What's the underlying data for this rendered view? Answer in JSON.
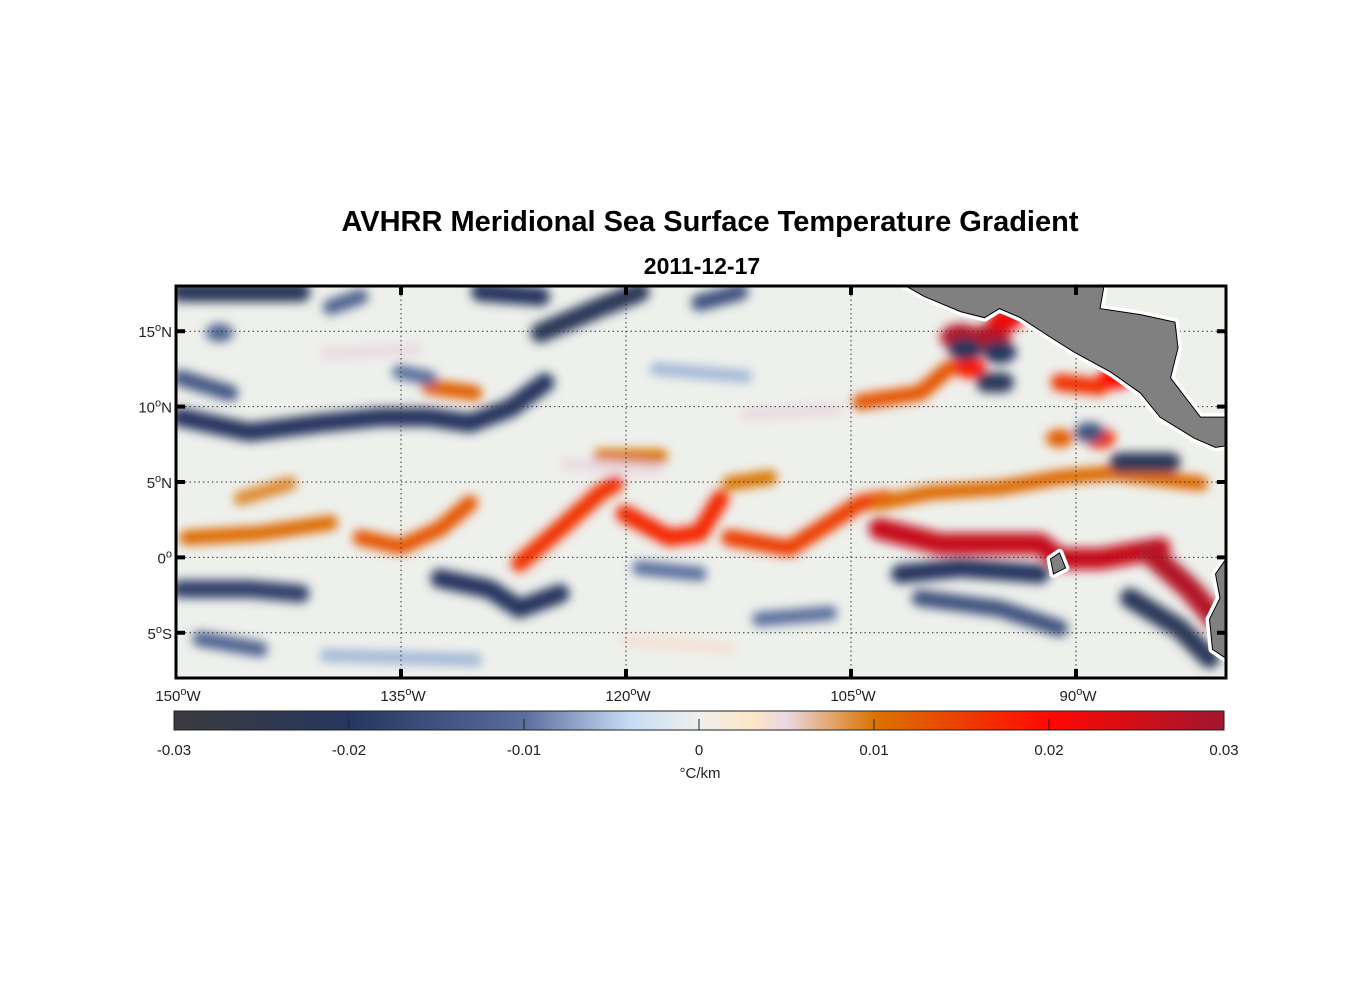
{
  "title": "AVHRR Meridional Sea Surface Temperature Gradient",
  "subtitle": "2011-12-17",
  "chart_data": {
    "type": "heatmap",
    "projection": "equirectangular",
    "lon_range": [
      -150,
      -80
    ],
    "lat_range": [
      -8,
      18
    ],
    "grid": true,
    "x_ticks": [
      {
        "lon": -150,
        "deg": "150",
        "hem": "W"
      },
      {
        "lon": -135,
        "deg": "135",
        "hem": "W"
      },
      {
        "lon": -120,
        "deg": "120",
        "hem": "W"
      },
      {
        "lon": -105,
        "deg": "105",
        "hem": "W"
      },
      {
        "lon": -90,
        "deg": "90",
        "hem": "W"
      }
    ],
    "y_ticks": [
      {
        "lat": 15,
        "deg": "15",
        "hem": "N"
      },
      {
        "lat": 10,
        "deg": "10",
        "hem": "N"
      },
      {
        "lat": 5,
        "deg": "5",
        "hem": "N"
      },
      {
        "lat": 0,
        "deg": "0",
        "hem": ""
      },
      {
        "lat": -5,
        "deg": "5",
        "hem": "S"
      }
    ],
    "colorbar": {
      "range": [
        -0.03,
        0.03
      ],
      "ticks": [
        "-0.03",
        "-0.02",
        "-0.01",
        "0",
        "0.01",
        "0.02",
        "0.03"
      ],
      "tick_values": [
        -0.03,
        -0.02,
        -0.01,
        0,
        0.01,
        0.02,
        0.03
      ],
      "label": "°C/km",
      "stops": [
        [
          -0.03,
          "#3b3b3d"
        ],
        [
          -0.02,
          "#25365f"
        ],
        [
          -0.01,
          "#5a6e9c"
        ],
        [
          -0.004,
          "#c6dbf4"
        ],
        [
          0,
          "#eef0ec"
        ],
        [
          0.003,
          "#fde7c6"
        ],
        [
          0.005,
          "#ead9e1"
        ],
        [
          0.01,
          "#da7400"
        ],
        [
          0.02,
          "#ff0800"
        ],
        [
          0.03,
          "#a0162f"
        ]
      ]
    },
    "background_value": 0,
    "features": [
      {
        "value": 0.011,
        "pts": [
          [
            -149.3,
            1.3
          ],
          [
            -144.4,
            1.6
          ],
          [
            -139.7,
            2.3
          ]
        ]
      },
      {
        "value": 0.009,
        "pts": [
          [
            -145.7,
            3.9
          ],
          [
            -142.4,
            4.9
          ]
        ]
      },
      {
        "value": 0.013,
        "pts": [
          [
            -137.7,
            1.3
          ],
          [
            -135,
            0.7
          ],
          [
            -132.4,
            1.9
          ],
          [
            -130.4,
            3.6
          ]
        ]
      },
      {
        "value": 0.016,
        "pts": [
          [
            -127.1,
            -0.4
          ],
          [
            -124.4,
            1.9
          ],
          [
            -121.7,
            4.3
          ],
          [
            -120.7,
            4.9
          ]
        ]
      },
      {
        "value": 0.017,
        "pts": [
          [
            -120.1,
            2.9
          ],
          [
            -117.1,
            1.3
          ],
          [
            -115.1,
            1.6
          ],
          [
            -113.7,
            3.9
          ]
        ]
      },
      {
        "value": 0.015,
        "pts": [
          [
            -113.1,
            1.3
          ],
          [
            -109.1,
            0.6
          ],
          [
            -106.4,
            2.3
          ],
          [
            -104.4,
            3.6
          ],
          [
            -102.7,
            3.9
          ]
        ]
      },
      {
        "value": 0.011,
        "pts": [
          [
            -103.1,
            3.6
          ],
          [
            -99.7,
            4.3
          ],
          [
            -95.1,
            4.6
          ],
          [
            -91.1,
            5.3
          ],
          [
            -87.7,
            5.6
          ],
          [
            -81.7,
            4.9
          ]
        ]
      },
      {
        "value": 0.026,
        "pts": [
          [
            -103.1,
            1.9
          ],
          [
            -99.1,
            0.9
          ],
          [
            -95.1,
            0.9
          ],
          [
            -92.4,
            0.9
          ],
          [
            -91.1,
            -0.1
          ],
          [
            -88.4,
            -0.1
          ],
          [
            -84.4,
            0.6
          ]
        ]
      },
      {
        "value": 0.028,
        "pts": [
          [
            -85.1,
            0.3
          ],
          [
            -82.4,
            -2.1
          ],
          [
            -80.7,
            -4.1
          ]
        ]
      },
      {
        "value": 0.01,
        "pts": [
          [
            -121.7,
            6.7
          ],
          [
            -117.7,
            6.7
          ]
        ]
      },
      {
        "value": 0.012,
        "pts": [
          [
            -133.1,
            11.3
          ],
          [
            -130.1,
            10.9
          ]
        ]
      },
      {
        "value": 0.01,
        "pts": [
          [
            -113.1,
            4.9
          ],
          [
            -110.4,
            5.3
          ]
        ]
      },
      {
        "value": 0.013,
        "pts": [
          [
            -104.4,
            10.3
          ],
          [
            -100.4,
            10.9
          ],
          [
            -98.4,
            12.6
          ]
        ]
      },
      {
        "value": 0.028,
        "pts": [
          [
            -97.7,
            14.6
          ]
        ]
      },
      {
        "value": 0.028,
        "pts": [
          [
            -95.7,
            14.6
          ]
        ]
      },
      {
        "value": 0.022,
        "pts": [
          [
            -94.7,
            15.8
          ]
        ]
      },
      {
        "value": 0.018,
        "pts": [
          [
            -97.1,
            12.6
          ]
        ]
      },
      {
        "value": -0.02,
        "pts": [
          [
            -97.4,
            13.8
          ]
        ]
      },
      {
        "value": -0.02,
        "pts": [
          [
            -95.1,
            13.6
          ]
        ]
      },
      {
        "value": -0.022,
        "pts": [
          [
            -96.0,
            11.6
          ],
          [
            -94.8,
            11.6
          ]
        ]
      },
      {
        "value": 0.016,
        "pts": [
          [
            -91.1,
            11.6
          ],
          [
            -88.4,
            11.3
          ]
        ]
      },
      {
        "value": 0.02,
        "pts": [
          [
            -87.4,
            11.9
          ]
        ]
      },
      {
        "value": 0.016,
        "pts": [
          [
            -88.4,
            7.9
          ]
        ]
      },
      {
        "value": 0.012,
        "pts": [
          [
            -91.1,
            7.9
          ]
        ]
      },
      {
        "value": -0.015,
        "pts": [
          [
            -89.1,
            8.3
          ]
        ]
      },
      {
        "value": -0.022,
        "pts": [
          [
            -87.1,
            6.3
          ],
          [
            -83.7,
            6.3
          ]
        ]
      },
      {
        "value": -0.02,
        "pts": [
          [
            -149.7,
            9.3
          ],
          [
            -145.1,
            8.3
          ],
          [
            -140.4,
            8.9
          ],
          [
            -136.4,
            9.3
          ],
          [
            -133.1,
            9.3
          ],
          [
            -130.4,
            8.9
          ],
          [
            -127.7,
            9.9
          ],
          [
            -125.4,
            11.6
          ]
        ]
      },
      {
        "value": -0.022,
        "pts": [
          [
            -149.7,
            17.6
          ],
          [
            -141.7,
            17.6
          ]
        ]
      },
      {
        "value": -0.02,
        "pts": [
          [
            -129.7,
            17.6
          ],
          [
            -125.7,
            17.3
          ]
        ]
      },
      {
        "value": -0.022,
        "pts": [
          [
            -125.7,
            14.9
          ],
          [
            -121.7,
            16.6
          ],
          [
            -119.1,
            17.6
          ]
        ]
      },
      {
        "value": -0.015,
        "pts": [
          [
            -115.1,
            16.9
          ],
          [
            -112.4,
            17.6
          ]
        ]
      },
      {
        "value": -0.012,
        "pts": [
          [
            -139.7,
            16.6
          ],
          [
            -137.7,
            17.3
          ]
        ]
      },
      {
        "value": -0.012,
        "pts": [
          [
            -147.1,
            14.9
          ]
        ]
      },
      {
        "value": -0.01,
        "pts": [
          [
            -135.1,
            12.3
          ],
          [
            -133.1,
            11.9
          ]
        ]
      },
      {
        "value": -0.014,
        "pts": [
          [
            -149.7,
            11.9
          ],
          [
            -146.4,
            10.9
          ]
        ]
      },
      {
        "value": -0.018,
        "pts": [
          [
            -149.7,
            -2.1
          ],
          [
            -145.1,
            -2.1
          ],
          [
            -141.7,
            -2.4
          ]
        ]
      },
      {
        "value": -0.02,
        "pts": [
          [
            -132.4,
            -1.4
          ],
          [
            -129.1,
            -2.1
          ],
          [
            -127.1,
            -3.4
          ],
          [
            -124.4,
            -2.4
          ]
        ]
      },
      {
        "value": -0.02,
        "pts": [
          [
            -101.7,
            -1.1
          ],
          [
            -97.7,
            -0.7
          ],
          [
            -92.4,
            -1.1
          ]
        ]
      },
      {
        "value": -0.015,
        "pts": [
          [
            -100.4,
            -2.7
          ],
          [
            -95.1,
            -3.4
          ],
          [
            -91.1,
            -4.7
          ]
        ]
      },
      {
        "value": -0.022,
        "pts": [
          [
            -86.4,
            -2.7
          ],
          [
            -83.1,
            -4.7
          ],
          [
            -81.1,
            -6.7
          ]
        ]
      },
      {
        "value": -0.012,
        "pts": [
          [
            -148.4,
            -5.4
          ],
          [
            -144.4,
            -6.1
          ]
        ]
      },
      {
        "value": -0.01,
        "pts": [
          [
            -111.1,
            -4.1
          ],
          [
            -106.4,
            -3.7
          ]
        ]
      },
      {
        "value": -0.01,
        "pts": [
          [
            -119.1,
            -0.7
          ],
          [
            -115.1,
            -1.1
          ]
        ]
      },
      {
        "value": 0.005,
        "pts": [
          [
            -140,
            13.5
          ],
          [
            -134,
            13.8
          ]
        ]
      },
      {
        "value": 0.005,
        "pts": [
          [
            -124,
            6.2
          ],
          [
            -118,
            5.8
          ]
        ]
      },
      {
        "value": -0.006,
        "pts": [
          [
            -118,
            12.5
          ],
          [
            -112,
            12.0
          ]
        ]
      },
      {
        "value": 0.005,
        "pts": [
          [
            -112,
            9.5
          ],
          [
            -106,
            9.8
          ]
        ]
      },
      {
        "value": -0.006,
        "pts": [
          [
            -140,
            -6.5
          ],
          [
            -130,
            -6.8
          ]
        ]
      },
      {
        "value": 0.004,
        "pts": [
          [
            -120,
            -5.5
          ],
          [
            -113,
            -6.0
          ]
        ]
      }
    ],
    "land": [
      [
        [
          -101.7,
          18.2
        ],
        [
          -100.1,
          17.3
        ],
        [
          -97.7,
          16.3
        ],
        [
          -96.1,
          15.9
        ],
        [
          -95.1,
          16.5
        ],
        [
          -93.7,
          15.9
        ],
        [
          -91.7,
          14.6
        ],
        [
          -90.1,
          13.6
        ],
        [
          -87.7,
          12.3
        ],
        [
          -85.7,
          10.9
        ],
        [
          -84.4,
          9.3
        ],
        [
          -82.1,
          7.9
        ],
        [
          -80.7,
          7.3
        ],
        [
          -80,
          7.4
        ],
        [
          -80,
          9.3
        ],
        [
          -81.7,
          9.3
        ],
        [
          -82.7,
          10.6
        ],
        [
          -83.7,
          11.9
        ],
        [
          -83.2,
          13.9
        ],
        [
          -83.4,
          15.6
        ],
        [
          -85.7,
          16.1
        ],
        [
          -88.4,
          16.5
        ],
        [
          -88.1,
          18.2
        ]
      ],
      [
        [
          -80,
          -0.1
        ],
        [
          -80.7,
          -1.1
        ],
        [
          -80.4,
          -2.7
        ],
        [
          -81.1,
          -4.1
        ],
        [
          -80.9,
          -6.1
        ],
        [
          -80,
          -6.7
        ]
      ],
      [
        [
          -91.7,
          -0.1
        ],
        [
          -91.1,
          0.3
        ],
        [
          -90.7,
          -0.7
        ],
        [
          -91.5,
          -1.1
        ]
      ]
    ],
    "land_color": "#808080"
  }
}
